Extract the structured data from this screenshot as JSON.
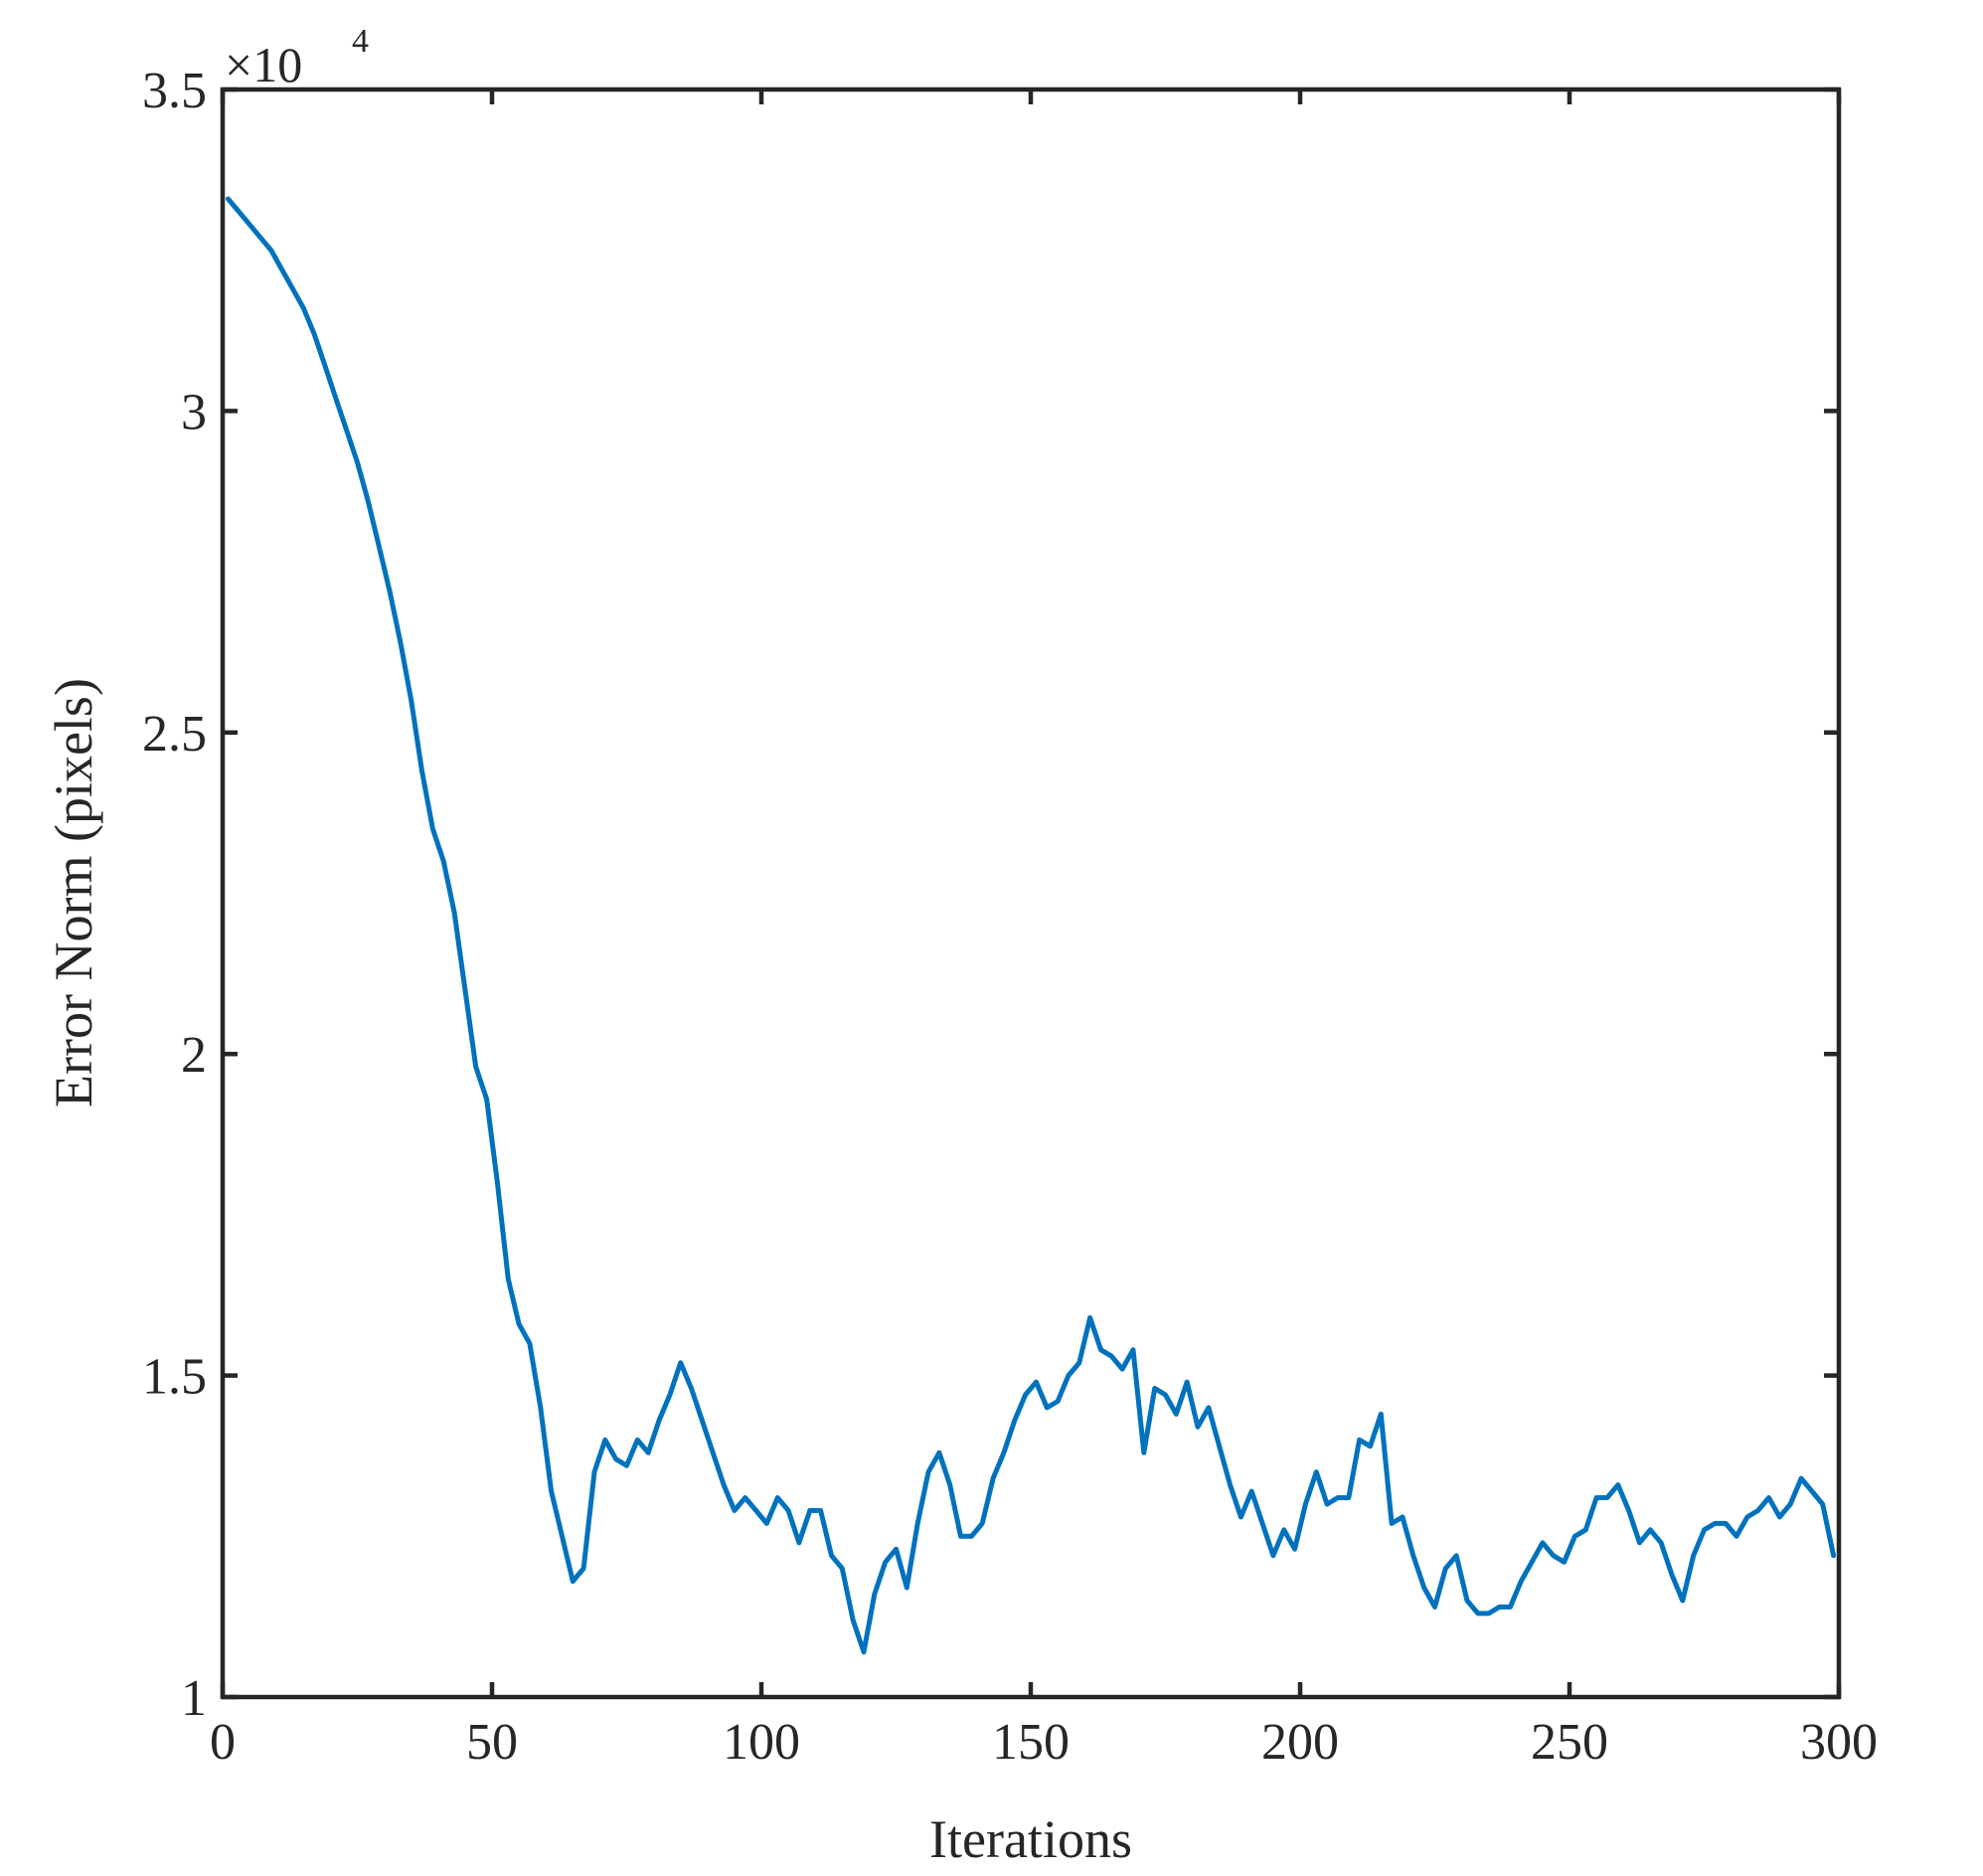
{
  "chart_data": {
    "type": "line",
    "title": "",
    "xlabel": "Iterations",
    "ylabel": "Error Norm (pixels)",
    "y_multiplier_label": "×10",
    "y_multiplier_exponent": "4",
    "xlim": [
      0,
      300
    ],
    "ylim": [
      1,
      3.5
    ],
    "x_ticks": [
      0,
      50,
      100,
      150,
      200,
      250,
      300
    ],
    "x_tick_labels": [
      "0",
      "50",
      "100",
      "150",
      "200",
      "250",
      "300"
    ],
    "y_ticks": [
      1,
      1.5,
      2,
      2.5,
      3,
      3.5
    ],
    "y_tick_labels": [
      "1",
      "1.5",
      "2",
      "2.5",
      "3",
      "3.5"
    ],
    "grid": false,
    "legend": "none",
    "colors": {
      "series": "#0072BD",
      "axes": "#262626"
    },
    "series": [
      {
        "x": [
          1,
          3,
          5,
          7,
          9,
          11,
          13,
          15,
          17,
          19,
          21,
          23,
          25,
          27,
          29,
          31,
          33,
          35,
          37,
          39,
          41,
          43,
          45,
          47,
          49,
          51,
          53,
          55,
          57,
          59,
          61,
          63,
          65,
          67,
          69,
          71,
          73,
          75,
          77,
          79,
          81,
          83,
          85,
          87,
          89,
          91,
          93,
          95,
          97,
          99,
          101,
          103,
          105,
          107,
          109,
          111,
          113,
          115,
          117,
          119,
          121,
          123,
          125,
          127,
          129,
          131,
          133,
          135,
          137,
          139,
          141,
          143,
          145,
          147,
          149,
          151,
          153,
          155,
          157,
          159,
          161,
          163,
          165,
          167,
          169,
          171,
          173,
          175,
          177,
          179,
          181,
          183,
          185,
          187,
          189,
          191,
          193,
          195,
          197,
          199,
          201,
          203,
          205,
          207,
          209,
          211,
          213,
          215,
          217,
          219,
          221,
          223,
          225,
          227,
          229,
          231,
          233,
          235,
          237,
          239,
          241,
          243,
          245,
          247,
          249,
          251,
          253,
          255,
          257,
          259,
          261,
          263,
          265,
          267,
          269,
          271,
          273,
          275,
          277,
          279,
          281,
          283,
          285,
          287,
          289,
          291,
          293,
          295,
          297,
          299
        ],
        "y": [
          3.33,
          3.31,
          3.29,
          3.27,
          3.25,
          3.22,
          3.19,
          3.16,
          3.12,
          3.07,
          3.02,
          2.97,
          2.92,
          2.86,
          2.79,
          2.72,
          2.64,
          2.55,
          2.44,
          2.35,
          2.3,
          2.22,
          2.1,
          1.98,
          1.93,
          1.8,
          1.65,
          1.58,
          1.55,
          1.45,
          1.32,
          1.25,
          1.18,
          1.2,
          1.35,
          1.4,
          1.37,
          1.36,
          1.4,
          1.38,
          1.43,
          1.47,
          1.52,
          1.48,
          1.43,
          1.38,
          1.33,
          1.29,
          1.31,
          1.29,
          1.27,
          1.31,
          1.29,
          1.24,
          1.29,
          1.29,
          1.22,
          1.2,
          1.12,
          1.07,
          1.16,
          1.21,
          1.23,
          1.17,
          1.27,
          1.35,
          1.38,
          1.33,
          1.25,
          1.25,
          1.27,
          1.34,
          1.38,
          1.43,
          1.47,
          1.49,
          1.45,
          1.46,
          1.5,
          1.52,
          1.59,
          1.54,
          1.53,
          1.51,
          1.54,
          1.38,
          1.48,
          1.47,
          1.44,
          1.49,
          1.42,
          1.45,
          1.39,
          1.33,
          1.28,
          1.32,
          1.27,
          1.22,
          1.26,
          1.23,
          1.3,
          1.35,
          1.3,
          1.31,
          1.31,
          1.4,
          1.39,
          1.44,
          1.27,
          1.28,
          1.22,
          1.17,
          1.14,
          1.2,
          1.22,
          1.15,
          1.13,
          1.13,
          1.14,
          1.14,
          1.18,
          1.21,
          1.24,
          1.22,
          1.21,
          1.25,
          1.26,
          1.31,
          1.31,
          1.33,
          1.29,
          1.24,
          1.26,
          1.24,
          1.19,
          1.15,
          1.22,
          1.26,
          1.27,
          1.27,
          1.25,
          1.28,
          1.29,
          1.31,
          1.28,
          1.3,
          1.34,
          1.32,
          1.3,
          1.22
        ]
      }
    ]
  }
}
